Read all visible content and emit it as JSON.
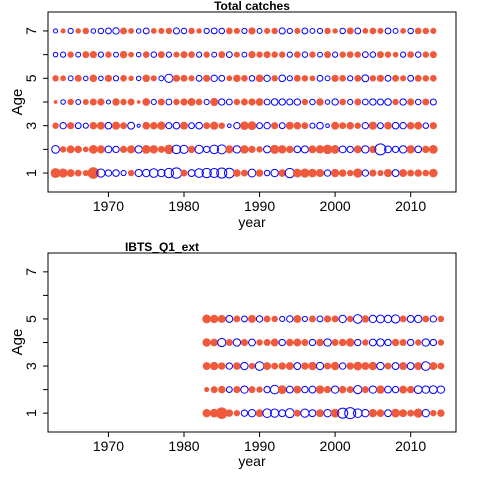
{
  "colors": {
    "positive": "#ef5a3d",
    "negative": "#0000ff",
    "axis": "#000000"
  },
  "chart_data": [
    {
      "type": "scatter",
      "title": "Total catches",
      "xlabel": "year",
      "ylabel": "Age",
      "xlim": [
        1962,
        2016
      ],
      "ylim": [
        0.2,
        7.8
      ],
      "xticks": [
        1970,
        1980,
        1990,
        2000,
        2010
      ],
      "yticks": [
        1,
        3,
        5,
        7
      ],
      "yminor_ticks": [
        2,
        4,
        6
      ],
      "years": [
        1963,
        2013
      ],
      "ages": [
        1,
        2,
        3,
        4,
        5,
        6,
        7
      ],
      "encoding": "bubble: filled = positive residual, open = negative residual, area proportional to magnitude",
      "residuals_by_age": {
        "1": [
          2.6,
          2.2,
          1.6,
          1.2,
          0.9,
          3.6,
          -2.0,
          -1.2,
          -1.3,
          -0.8,
          1.0,
          -1.5,
          -1.6,
          -2.2,
          -1.6,
          -2.6,
          -3.2,
          1.2,
          -1.4,
          -2.2,
          -2.6,
          -2.4,
          -3.0,
          -2.8,
          1.5,
          1.2,
          -1.8,
          1.4,
          -0.9,
          -1.6,
          1.5,
          -2.6,
          2.0,
          2.2,
          1.9,
          1.7,
          -1.2,
          1.8,
          1.4,
          1.0,
          2.2,
          -1.2,
          1.3,
          0.9,
          1.7,
          -1.4,
          1.6,
          1.2,
          1.4,
          1.1,
          1.9
        ],
        "2": [
          -1.8,
          1.0,
          1.6,
          1.4,
          0.8,
          2.0,
          1.7,
          -1.4,
          -1.2,
          1.3,
          1.7,
          -1.6,
          2.0,
          1.8,
          1.2,
          2.4,
          -2.2,
          -2.0,
          1.4,
          -2.0,
          -1.2,
          -2.2,
          -2.4,
          1.7,
          -1.6,
          1.9,
          1.3,
          1.0,
          -1.5,
          2.2,
          1.8,
          1.4,
          -1.3,
          -1.5,
          1.6,
          1.8,
          2.4,
          2.0,
          -1.4,
          -1.2,
          1.6,
          -1.6,
          1.4,
          -3.6,
          -1.4,
          -1.2,
          -1.6,
          1.8,
          -1.3,
          1.4,
          2.0
        ],
        "3": [
          1.0,
          -1.2,
          1.3,
          -1.0,
          -0.8,
          1.4,
          1.6,
          -1.3,
          1.7,
          1.2,
          -1.4,
          -0.3,
          1.5,
          1.4,
          1.8,
          -1.1,
          -1.3,
          1.6,
          -1.0,
          -1.3,
          1.2,
          1.7,
          1.0,
          -0.4,
          -1.2,
          1.9,
          2.0,
          -1.0,
          -1.2,
          1.3,
          -1.0,
          1.6,
          1.4,
          1.2,
          -0.8,
          -1.3,
          -0.4,
          1.6,
          1.2,
          1.4,
          1.0,
          -1.2,
          1.7,
          -1.0,
          1.5,
          -1.3,
          -1.2,
          1.4,
          1.6,
          -0.9,
          1.3
        ],
        "4": [
          0.3,
          -0.6,
          1.0,
          -0.7,
          0.9,
          1.2,
          1.3,
          -0.5,
          1.4,
          1.0,
          1.2,
          0.3,
          1.5,
          -0.8,
          1.2,
          -1.0,
          1.0,
          1.3,
          1.6,
          1.1,
          -0.8,
          1.7,
          -1.2,
          -1.0,
          1.0,
          1.2,
          1.3,
          1.5,
          -1.0,
          -1.3,
          -1.2,
          -1.1,
          -1.2,
          1.0,
          -0.9,
          1.4,
          -0.6,
          -1.2,
          1.1,
          -0.8,
          1.2,
          -1.0,
          -1.2,
          -1.1,
          -1.3,
          1.0,
          -1.2,
          1.3,
          -0.9,
          1.2,
          -1.1
        ],
        "5": [
          1.0,
          0.8,
          -0.7,
          1.2,
          -0.6,
          1.4,
          -0.6,
          1.3,
          -0.8,
          1.1,
          0.7,
          -0.6,
          1.4,
          0.9,
          -0.7,
          -2.0,
          1.3,
          1.2,
          0.9,
          -1.0,
          1.3,
          -1.2,
          -1.0,
          0.8,
          1.4,
          1.1,
          -0.9,
          1.5,
          -1.2,
          1.0,
          -1.3,
          -0.8,
          1.2,
          1.0,
          0.8,
          -1.0,
          -0.7,
          1.3,
          1.1,
          -0.8,
          1.2,
          -1.4,
          1.0,
          1.3,
          -1.0,
          1.2,
          0.9,
          -1.0,
          1.2,
          1.0,
          1.1
        ],
        "6": [
          -0.6,
          -0.8,
          1.0,
          -0.7,
          1.2,
          1.3,
          -0.8,
          1.0,
          -0.7,
          1.4,
          0.8,
          -0.6,
          1.1,
          -0.9,
          1.2,
          -0.8,
          0.9,
          1.2,
          1.1,
          -0.8,
          1.0,
          -0.7,
          1.2,
          -1.0,
          0.9,
          -0.7,
          1.3,
          1.0,
          1.2,
          1.0,
          1.0,
          -0.8,
          1.1,
          -0.9,
          1.0,
          -0.7,
          1.2,
          -0.8,
          1.0,
          1.1,
          1.0,
          -1.0,
          -0.9,
          1.2,
          1.0,
          0.8,
          -0.8,
          1.1,
          -0.9,
          1.0,
          1.2
        ],
        "7": [
          -0.5,
          0.6,
          -0.8,
          0.7,
          1.0,
          -0.6,
          -0.9,
          -1.0,
          -1.2,
          1.2,
          0.8,
          -0.6,
          -1.0,
          0.8,
          0.9,
          1.0,
          -1.1,
          -0.9,
          1.0,
          0.7,
          -0.8,
          -1.0,
          -0.9,
          1.1,
          0.9,
          -0.8,
          1.3,
          -0.7,
          0.9,
          1.0,
          -1.1,
          -0.8,
          0.9,
          -1.0,
          -0.7,
          -0.8,
          1.0,
          0.7,
          -0.9,
          1.2,
          -1.0,
          0.8,
          1.1,
          0.9,
          -1.0,
          -0.7,
          0.8,
          -0.9,
          1.1,
          1.0,
          0.9
        ]
      }
    },
    {
      "type": "scatter",
      "title": "IBTS_Q1_ext",
      "xlabel": "year",
      "ylabel": "Age",
      "xlim": [
        1962,
        2016
      ],
      "ylim": [
        0.2,
        7.8
      ],
      "xticks": [
        1970,
        1980,
        1990,
        2000,
        2010
      ],
      "yticks": [
        1,
        3,
        5,
        7
      ],
      "yminor_ticks": [
        2,
        4,
        6
      ],
      "years": [
        1983,
        2014
      ],
      "ages": [
        1,
        2,
        3,
        4,
        5
      ],
      "encoding": "bubble: filled = positive residual, open = negative residual, area proportional to magnitude",
      "residuals_by_age": {
        "1": [
          1.8,
          2.0,
          3.6,
          1.4,
          1.0,
          -1.2,
          -1.6,
          1.6,
          -2.2,
          -2.0,
          -1.4,
          -2.4,
          1.2,
          -2.0,
          -1.4,
          1.6,
          -1.6,
          2.0,
          -3.0,
          -3.6,
          -2.2,
          -1.6,
          1.8,
          1.5,
          -1.4,
          2.0,
          1.6,
          1.2,
          2.2,
          -1.6,
          1.0,
          1.4
        ],
        "2": [
          0.6,
          1.2,
          1.4,
          -1.0,
          1.3,
          -1.6,
          1.2,
          1.0,
          -1.2,
          -2.2,
          2.0,
          -1.4,
          1.6,
          -1.2,
          -1.4,
          1.8,
          1.3,
          -1.6,
          1.4,
          1.2,
          -2.0,
          1.2,
          -1.6,
          1.8,
          -1.4,
          -1.2,
          1.6,
          1.4,
          -1.8,
          -1.6,
          -1.8,
          -1.6
        ],
        "3": [
          1.6,
          1.8,
          1.4,
          -1.2,
          1.5,
          -1.6,
          1.0,
          -2.2,
          1.6,
          1.2,
          1.4,
          1.6,
          -1.4,
          1.4,
          1.8,
          -1.6,
          1.2,
          1.8,
          -1.2,
          1.4,
          2.0,
          1.6,
          1.8,
          -1.6,
          1.2,
          -1.4,
          1.6,
          -1.4,
          1.6,
          -2.2,
          1.6,
          1.2
        ],
        "4": [
          1.8,
          1.5,
          -2.0,
          1.2,
          -1.6,
          1.3,
          -1.4,
          1.0,
          1.2,
          1.6,
          -1.2,
          1.4,
          1.6,
          1.2,
          -1.2,
          1.4,
          -1.6,
          1.2,
          1.4,
          1.8,
          -1.2,
          1.0,
          -1.4,
          -1.6,
          -1.2,
          1.4,
          1.2,
          -1.2,
          1.0,
          -1.6,
          -1.2,
          1.0
        ],
        "5": [
          2.0,
          1.8,
          1.6,
          -1.4,
          1.2,
          -1.0,
          1.6,
          -1.2,
          1.2,
          1.0,
          -0.8,
          -1.2,
          1.6,
          -0.8,
          1.2,
          -1.0,
          1.3,
          1.2,
          -1.6,
          1.0,
          -2.2,
          1.4,
          -1.6,
          -1.8,
          -1.6,
          -2.0,
          1.2,
          -1.4,
          -1.6,
          1.2,
          -1.2,
          1.0
        ]
      }
    }
  ]
}
